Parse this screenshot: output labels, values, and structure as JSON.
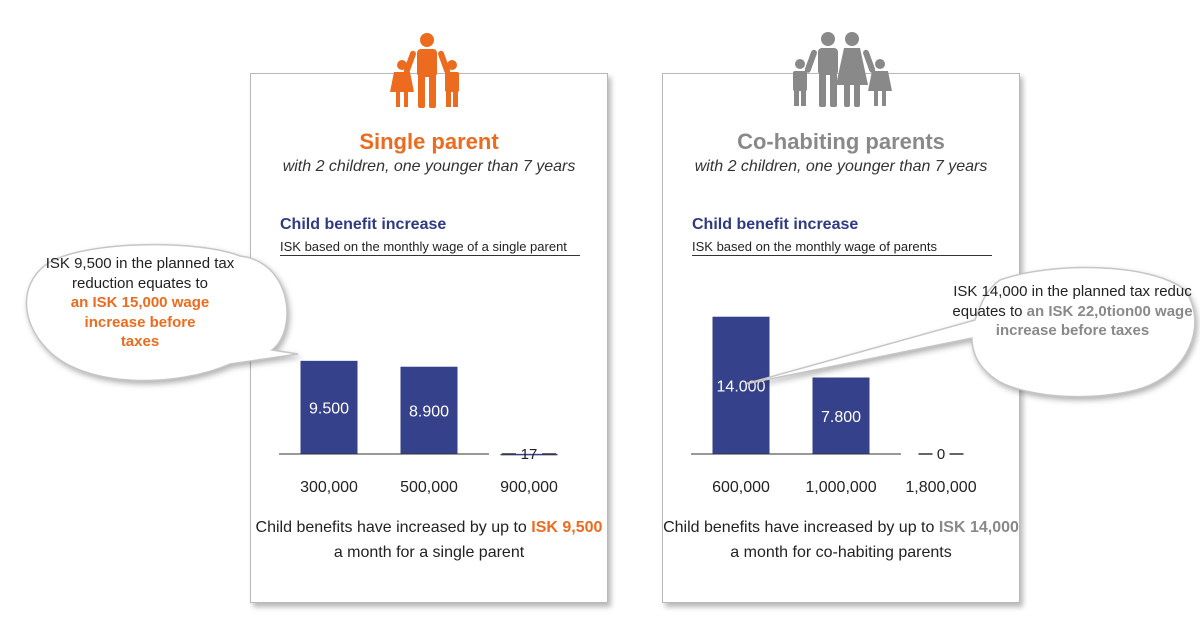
{
  "colors": {
    "bar": "#36418b",
    "accent_left": "#ec6b1e",
    "accent_right": "#898989",
    "chart_title": "#2e3a82"
  },
  "panels": [
    {
      "icon": "family-single-parent-icon",
      "title": "Single parent",
      "subtitle": "with 2 children, one younger than 7 years",
      "chart_title": "Child benefit increase",
      "chart_subtitle": "ISK based on the monthly wage of a single parent",
      "footer": {
        "pre": "Child benefits have increased by up to ",
        "highlight": "ISK 9,500",
        "post": " a month for a single parent"
      }
    },
    {
      "icon": "family-two-parents-icon",
      "title": "Co-habiting parents",
      "subtitle": "with 2 children, one younger than 7 years",
      "chart_title": "Child benefit increase",
      "chart_subtitle": "ISK based on the monthly wage of parents",
      "footer": {
        "pre": "Child benefits have increased by up to ",
        "highlight": "ISK 14,000",
        "post": " a month for co-habiting parents"
      }
    }
  ],
  "callouts": [
    {
      "plain": "ISK 9,500 in the planned tax reduction equates to",
      "highlight": "an ISK 15,000 wage increase before taxes"
    },
    {
      "plain": "ISK 14,000 in the planned tax reduc equates to",
      "highlight": "an ISK 22,0tion00 wage increase before taxes"
    }
  ],
  "chart_data": [
    {
      "type": "bar",
      "title": "Child benefit increase",
      "subtitle": "ISK based on the monthly wage of a single parent",
      "categories": [
        "300,000",
        "500,000",
        "900,000"
      ],
      "values": [
        9500,
        8900,
        17
      ],
      "value_labels": [
        "9.500",
        "8.900",
        "17"
      ],
      "ylim": [
        0,
        15500
      ]
    },
    {
      "type": "bar",
      "title": "Child benefit increase",
      "subtitle": "ISK based on the monthly wage of parents",
      "categories": [
        "600,000",
        "1,000,000",
        "1,800,000"
      ],
      "values": [
        14000,
        7800,
        0
      ],
      "value_labels": [
        "14.000",
        "7.800",
        "0"
      ],
      "ylim": [
        0,
        15500
      ]
    }
  ]
}
